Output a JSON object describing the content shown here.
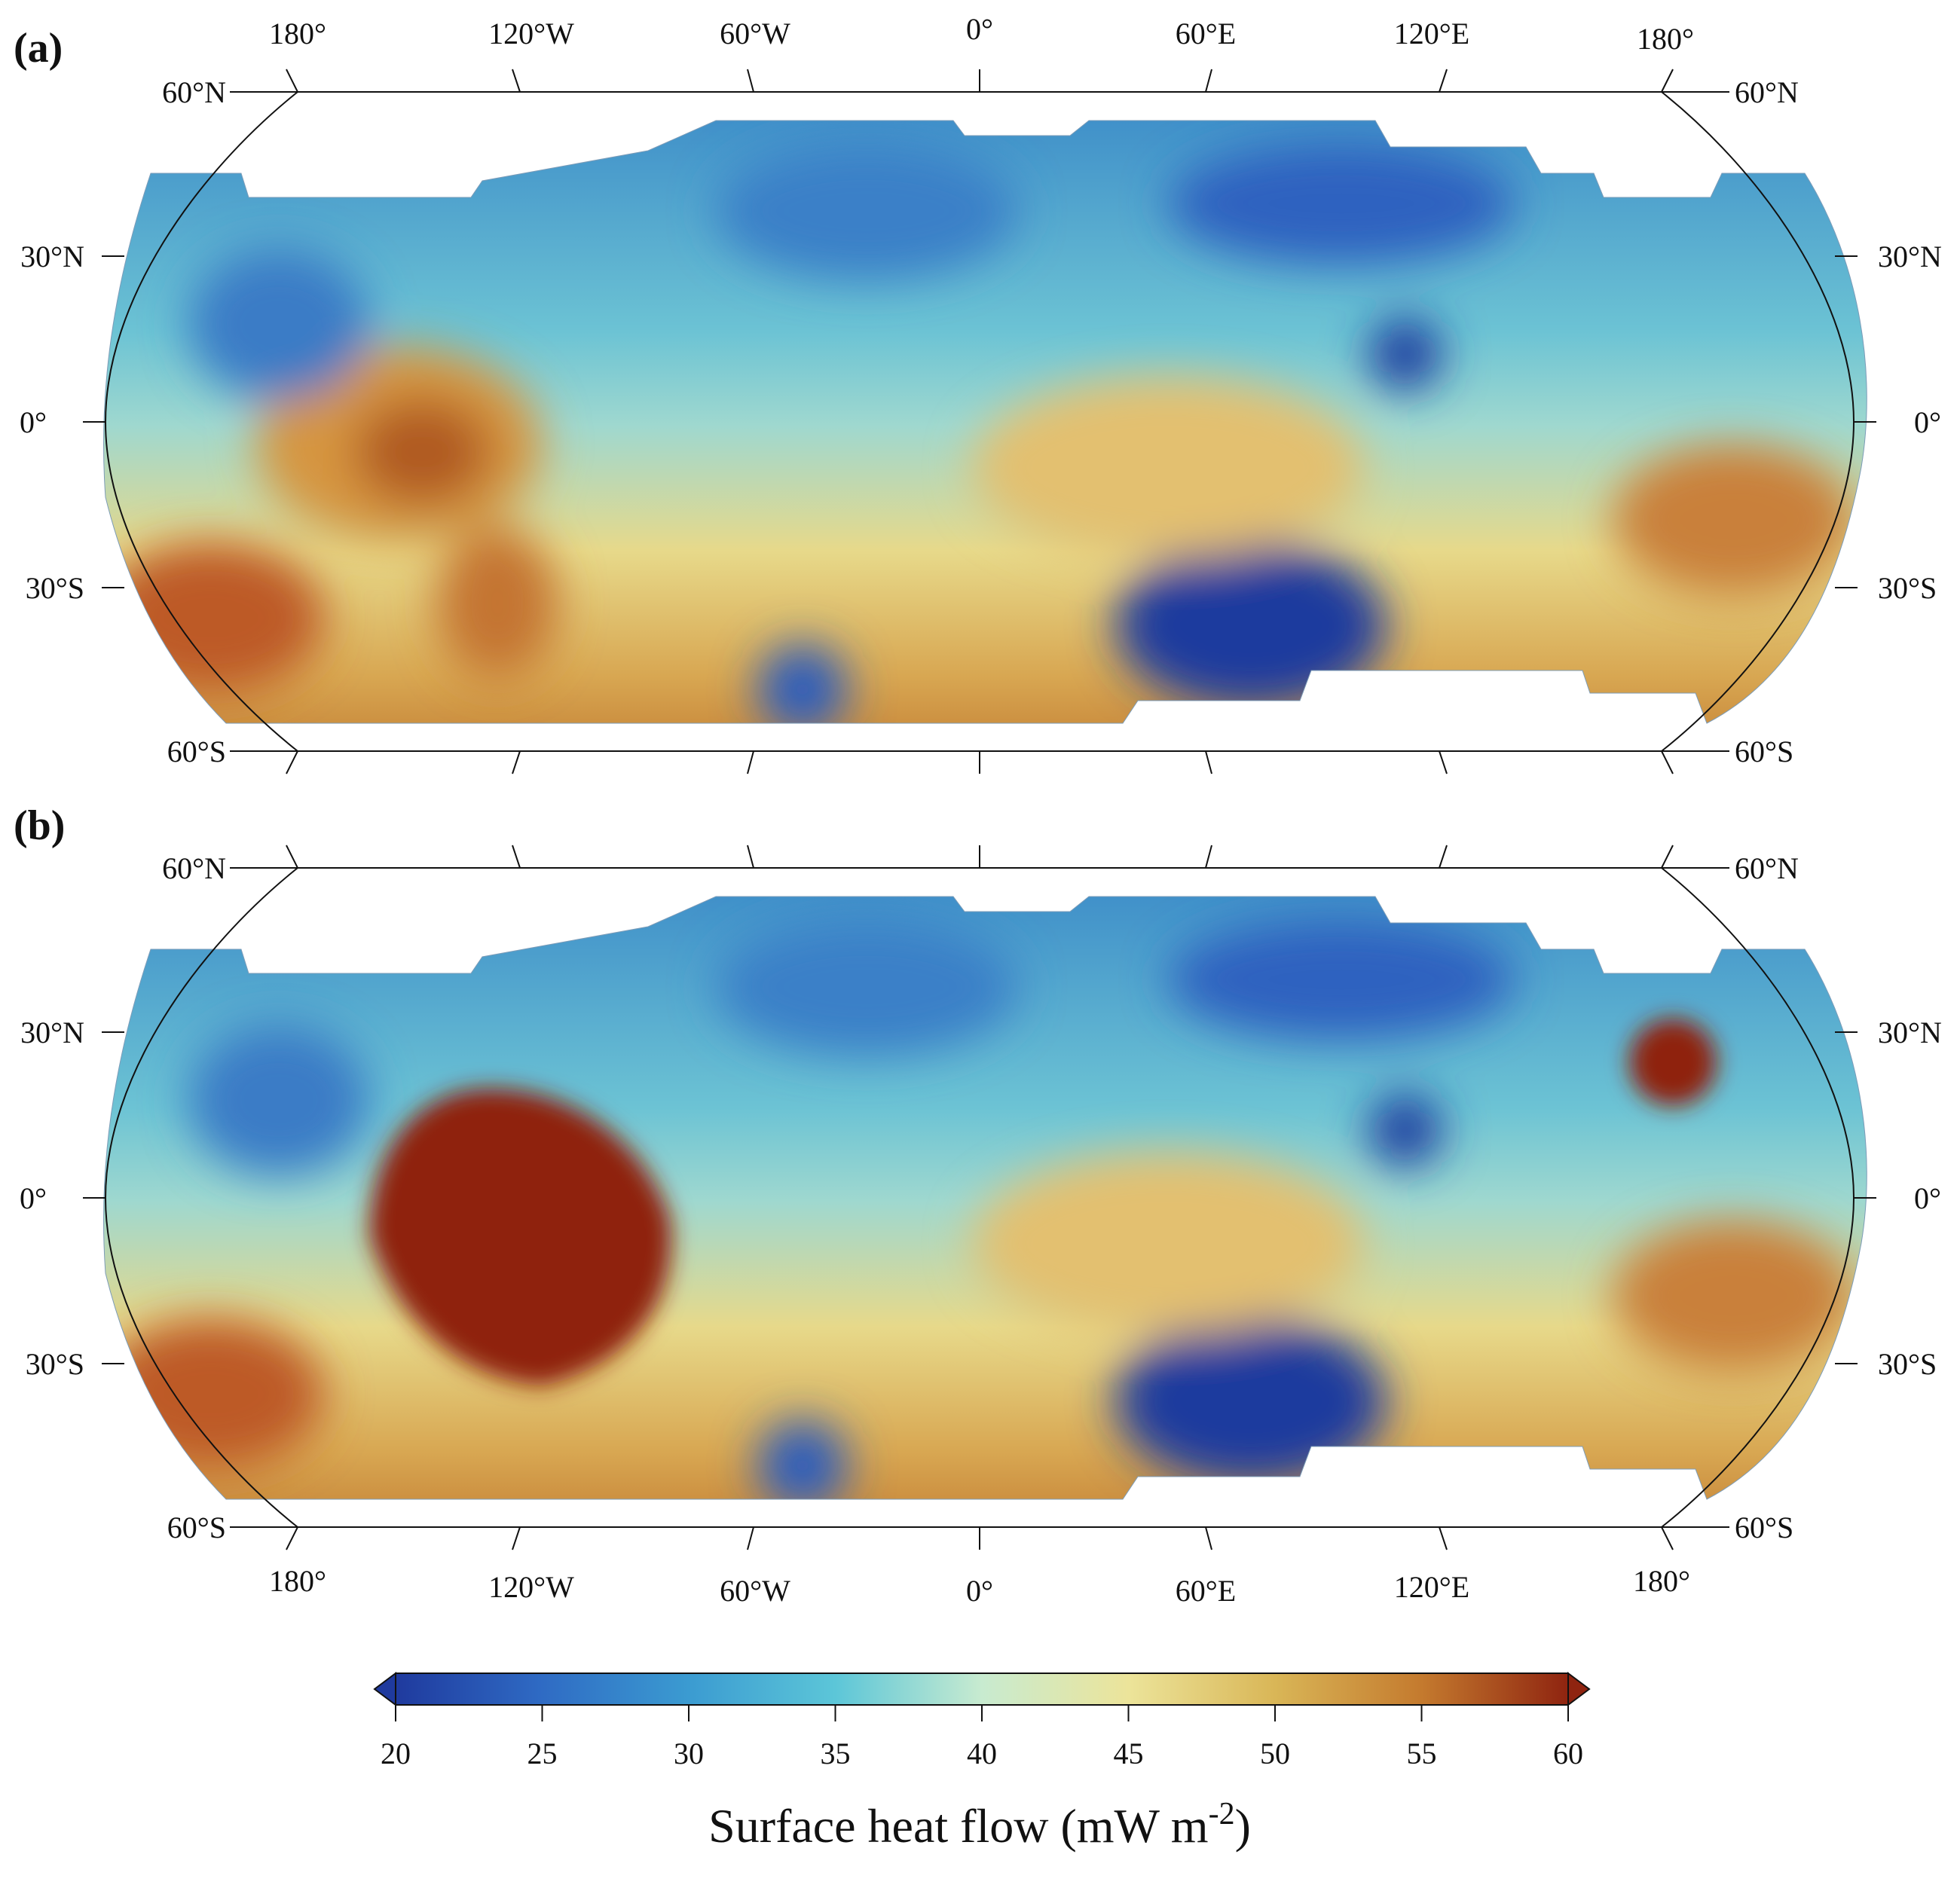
{
  "figure": {
    "panels": [
      {
        "id": "a",
        "label": "(a)"
      },
      {
        "id": "b",
        "label": "(b)"
      }
    ],
    "longitude_labels": [
      "180°",
      "120°W",
      "60°W",
      "0°",
      "60°E",
      "120°E",
      "180°"
    ],
    "latitude_labels": [
      "60°N",
      "30°N",
      "0°",
      "30°S",
      "60°S"
    ],
    "colorbar": {
      "title": "Surface heat flow (mW m",
      "title_superscript": "-2",
      "title_close": ")",
      "ticks": [
        "20",
        "25",
        "30",
        "35",
        "40",
        "45",
        "50",
        "55",
        "60"
      ],
      "min": 20,
      "max": 60,
      "colors": [
        "#1f3a9e",
        "#2f6bc4",
        "#3b9bd1",
        "#5cc6d8",
        "#c8ebd0",
        "#ece49a",
        "#d9b657",
        "#c47a2e",
        "#8f2410"
      ]
    }
  }
}
